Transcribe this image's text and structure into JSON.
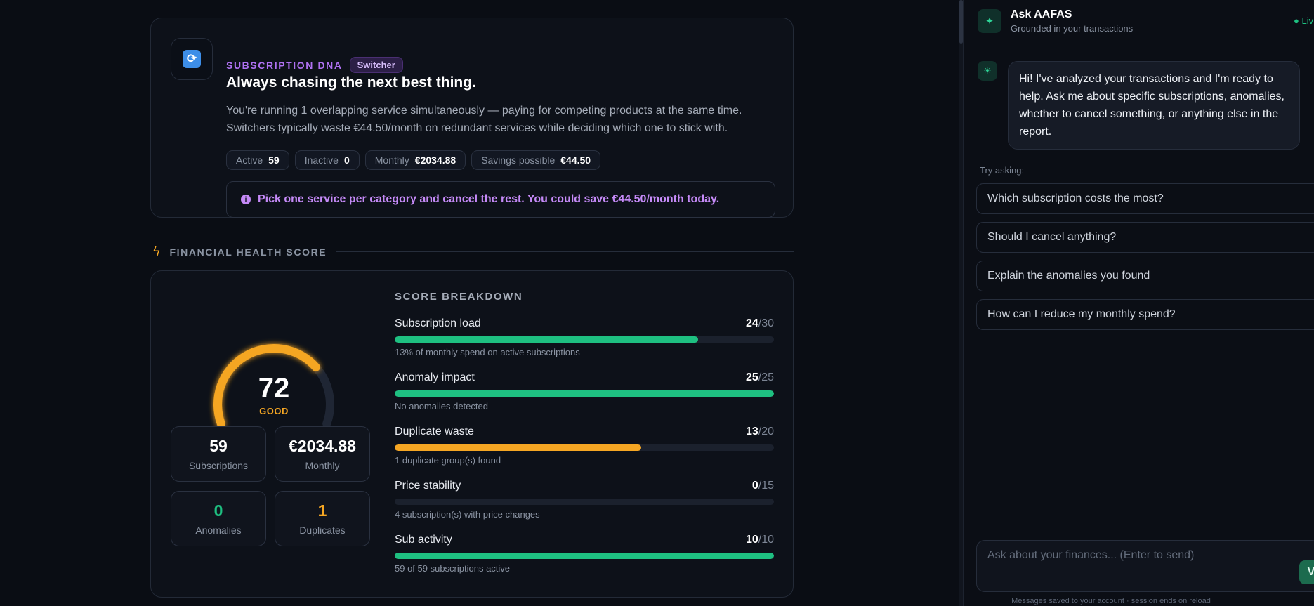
{
  "dna": {
    "icon": "refresh-icon",
    "eyebrow": "SUBSCRIPTION DNA",
    "tag": "Switcher",
    "title": "Always chasing the next best thing.",
    "description": "You're running 1 overlapping service simultaneously — paying for competing products at the same time. Switchers typically waste €44.50/month on redundant services while deciding which one to stick with.",
    "chips": [
      {
        "label": "Active",
        "value": "59"
      },
      {
        "label": "Inactive",
        "value": "0"
      },
      {
        "label": "Monthly",
        "value": "€2034.88"
      },
      {
        "label": "Savings possible",
        "value": "€44.50"
      }
    ],
    "tip": "Pick one service per category and cancel the rest. You could save €44.50/month today."
  },
  "health": {
    "section_title": "FINANCIAL HEALTH SCORE",
    "score": "72",
    "score_value": 72,
    "score_max": 100,
    "grade": "GOOD",
    "stats": [
      {
        "value": "59",
        "label": "Subscriptions"
      },
      {
        "value": "€2034.88",
        "label": "Monthly"
      },
      {
        "value": "0",
        "label": "Anomalies"
      },
      {
        "value": "1",
        "label": "Duplicates"
      }
    ],
    "breakdown_title": "SCORE BREAKDOWN",
    "breakdown": [
      {
        "label": "Subscription load",
        "score": "24",
        "max": "/30",
        "fraction": 0.8,
        "color": "#1ec081",
        "note": "13% of monthly spend on active subscriptions"
      },
      {
        "label": "Anomaly impact",
        "score": "25",
        "max": "/25",
        "fraction": 1.0,
        "color": "#1ec081",
        "note": "No anomalies detected"
      },
      {
        "label": "Duplicate waste",
        "score": "13",
        "max": "/20",
        "fraction": 0.65,
        "color": "#f5a623",
        "note": "1 duplicate group(s) found"
      },
      {
        "label": "Price stability",
        "score": "0",
        "max": "/15",
        "fraction": 0.0,
        "color": "#1ec081",
        "note": "4 subscription(s) with price changes"
      },
      {
        "label": "Sub activity",
        "score": "10",
        "max": "/10",
        "fraction": 1.0,
        "color": "#1ec081",
        "note": "59 of 59 subscriptions active"
      }
    ],
    "colors": {
      "gauge": "#f5a623",
      "good": "#1ec081",
      "warn": "#f5a623"
    }
  },
  "assistant": {
    "title": "Ask AAFAS",
    "subtitle": "Grounded in your transactions",
    "status": "● Liv",
    "greeting": "Hi! I've analyzed your transactions and I'm ready to help. Ask me about specific subscriptions, anomalies, whether to cancel something, or anything else in the report.",
    "try_label": "Try asking:",
    "suggestions": [
      "Which subscription costs the most?",
      "Should I cancel anything?",
      "Explain the anomalies you found",
      "How can I reduce my monthly spend?"
    ],
    "input_placeholder": "Ask about your finances... (Enter to send)",
    "footer": "Messages saved to your account · session ends on reload"
  }
}
